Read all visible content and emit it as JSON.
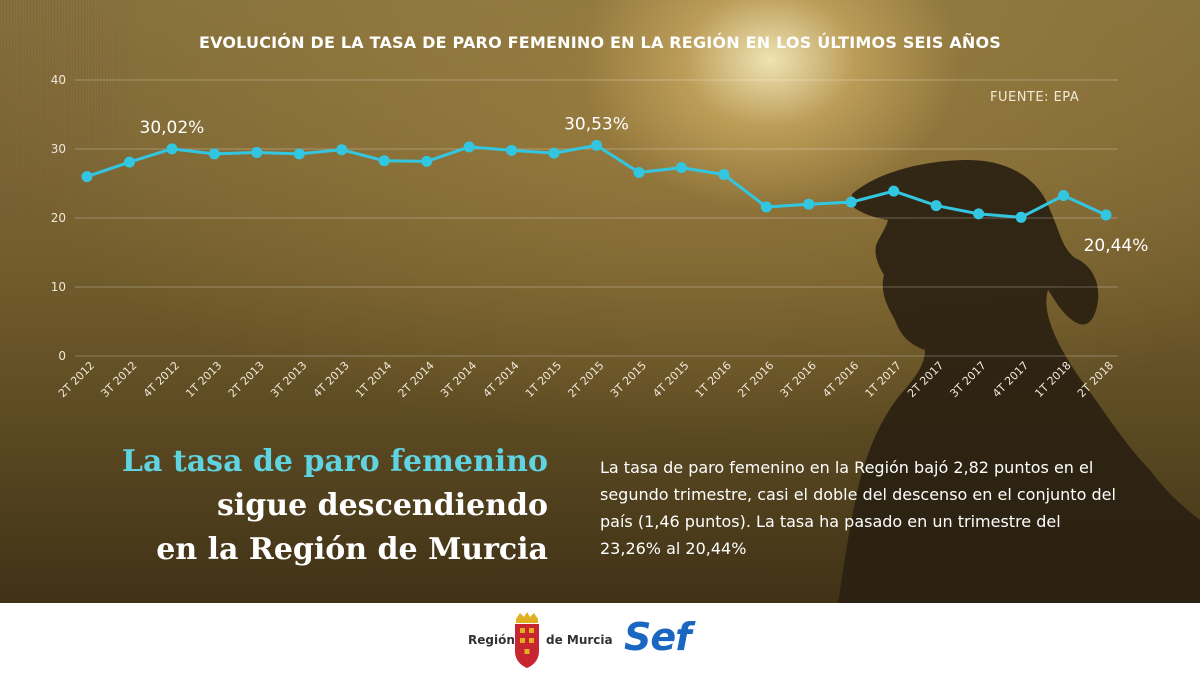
{
  "chart_data": {
    "type": "line",
    "title": "EVOLUCIÓN DE LA TASA DE PARO FEMENINO EN LA REGIÓN EN LOS ÚLTIMOS SEIS AÑOS",
    "source": "FUENTE: EPA",
    "categories": [
      "2T 2012",
      "3T 2012",
      "4T 2012",
      "1T 2013",
      "2T 2013",
      "3T 2013",
      "4T 2013",
      "1T 2014",
      "2T 2014",
      "3T 2014",
      "4T 2014",
      "1T 2015",
      "2T 2015",
      "3T 2015",
      "4T 2015",
      "1T 2016",
      "2T 2016",
      "3T 2016",
      "4T 2016",
      "1T 2017",
      "2T 2017",
      "3T 2017",
      "4T 2017",
      "1T 2018",
      "2T 2018"
    ],
    "values": [
      26.0,
      28.1,
      30.02,
      29.3,
      29.5,
      29.3,
      29.9,
      28.3,
      28.2,
      30.3,
      29.8,
      29.4,
      30.53,
      26.6,
      27.3,
      26.3,
      21.6,
      22.0,
      22.3,
      23.9,
      21.8,
      20.6,
      20.1,
      23.26,
      20.44
    ],
    "yticks": [
      0,
      10,
      20,
      30,
      40
    ],
    "ylim": [
      0,
      40
    ],
    "grid": true,
    "color": "#33c6e0",
    "annotations": [
      {
        "index": 2,
        "label": "30,02%"
      },
      {
        "index": 12,
        "label": "30,53%"
      },
      {
        "index": 24,
        "label": "20,44%"
      }
    ]
  },
  "headline": {
    "line1": "La tasa de paro femenino",
    "line2": "sigue descendiendo",
    "line3": "en la Región de Murcia"
  },
  "body": "La tasa de paro femenino en la Región bajó 2,82 puntos en el segundo trimestre, casi el doble del descenso en el conjunto del país (1,46 puntos). La tasa ha pasado en un trimestre del 23,26% al 20,44%",
  "footer": {
    "region_left": "Región",
    "region_right": "de Murcia",
    "sef": "Sef"
  }
}
